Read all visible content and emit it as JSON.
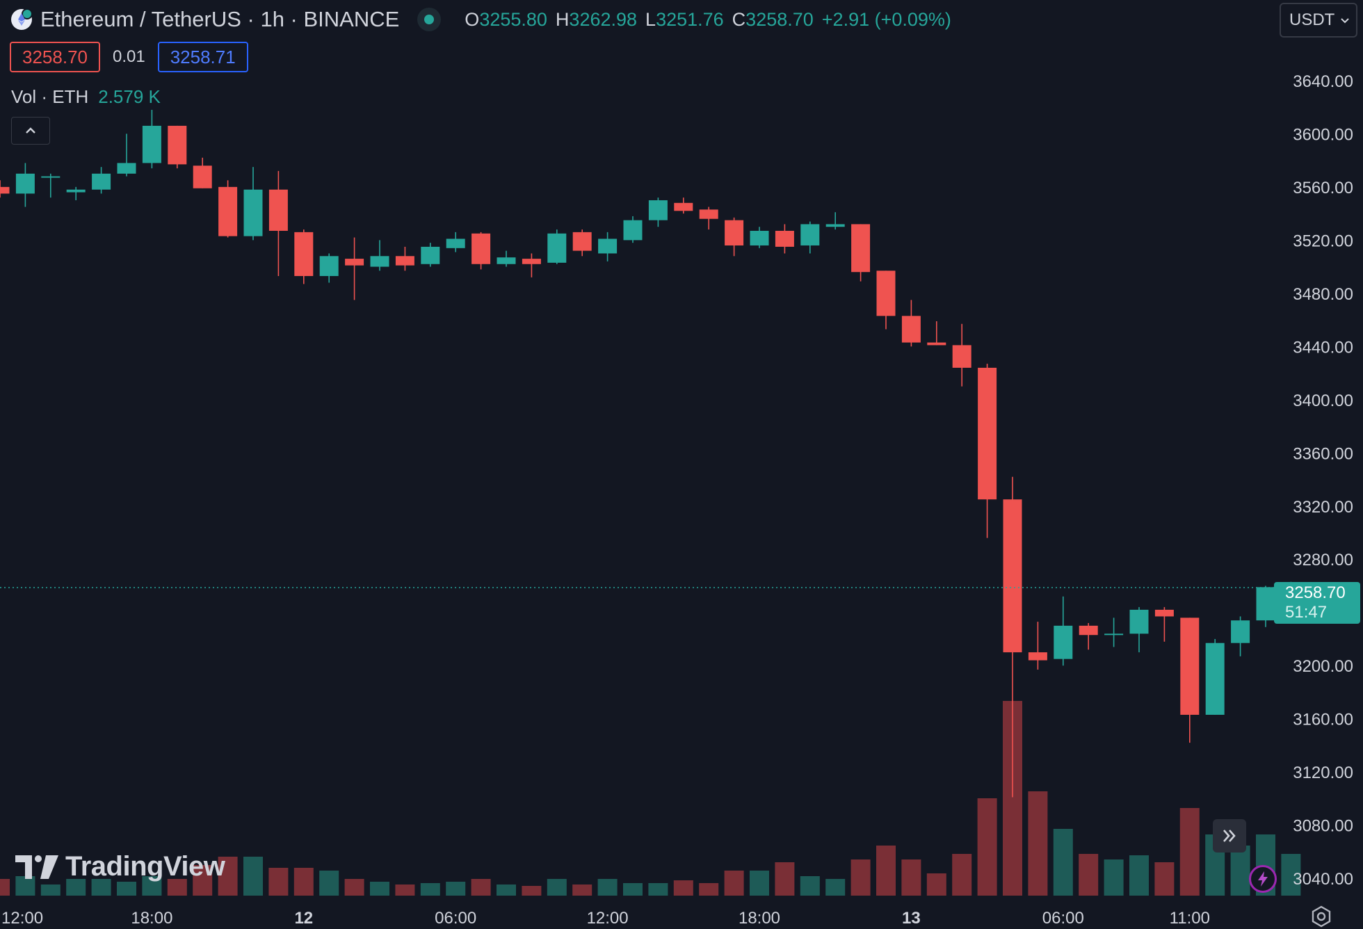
{
  "header": {
    "title": "Ethereum / TetherUS · 1h · BINANCE",
    "open_label": "O",
    "open": "3255.80",
    "high_label": "H",
    "high": "3262.98",
    "low_label": "L",
    "low": "3251.76",
    "close_label": "C",
    "close": "3258.70",
    "change": "+2.91 (+0.09%)"
  },
  "trade": {
    "sell": "3258.70",
    "spread": "0.01",
    "buy": "3258.71"
  },
  "volume_legend": {
    "label": "Vol · ETH",
    "value": "2.579 K"
  },
  "currency": {
    "label": "USDT"
  },
  "last_price": {
    "price": "3258.70",
    "countdown": "51:47"
  },
  "logo_text": "TradingView",
  "colors": {
    "up": "#26a69a",
    "down": "#ef5350",
    "vol_up": "#1e5b57",
    "vol_down": "#7a2f36",
    "background": "#131722",
    "text": "#d1d4dc"
  },
  "icons": [
    "ethereum-icon",
    "market-open-dot-icon",
    "chevron-up-icon",
    "chevron-down-icon",
    "double-chevron-right-icon",
    "lightning-icon",
    "gear-icon"
  ],
  "chart_data": {
    "type": "candlestick",
    "interval": "1h",
    "y_axis": {
      "ticks": [
        "3640.00",
        "3600.00",
        "3560.00",
        "3520.00",
        "3480.00",
        "3440.00",
        "3400.00",
        "3360.00",
        "3320.00",
        "3280.00",
        "3200.00",
        "3160.00",
        "3120.00",
        "3080.00",
        "3040.00"
      ],
      "range": [
        3027,
        3664
      ],
      "position": "right"
    },
    "x_axis": {
      "ticks": [
        {
          "label": "12:00",
          "index": 0
        },
        {
          "label": "18:00",
          "index": 6
        },
        {
          "label": "12",
          "index": 12,
          "bold": true
        },
        {
          "label": "06:00",
          "index": 18
        },
        {
          "label": "12:00",
          "index": 24
        },
        {
          "label": "18:00",
          "index": 30
        },
        {
          "label": "13",
          "index": 36,
          "bold": true
        },
        {
          "label": "06:00",
          "index": 42
        },
        {
          "label": "11:00",
          "index": 47
        }
      ]
    },
    "candles": [
      {
        "o": 3560,
        "h": 3565,
        "l": 3552,
        "c": 3555
      },
      {
        "o": 3555,
        "h": 3578,
        "l": 3545,
        "c": 3570
      },
      {
        "o": 3568,
        "h": 3570,
        "l": 3552,
        "c": 3568
      },
      {
        "o": 3556,
        "h": 3560,
        "l": 3550,
        "c": 3558
      },
      {
        "o": 3558,
        "h": 3575,
        "l": 3555,
        "c": 3570
      },
      {
        "o": 3570,
        "h": 3600,
        "l": 3568,
        "c": 3578
      },
      {
        "o": 3578,
        "h": 3618,
        "l": 3574,
        "c": 3606
      },
      {
        "o": 3606,
        "h": 3606,
        "l": 3574,
        "c": 3577
      },
      {
        "o": 3576,
        "h": 3582,
        "l": 3559,
        "c": 3559
      },
      {
        "o": 3560,
        "h": 3565,
        "l": 3522,
        "c": 3523
      },
      {
        "o": 3523,
        "h": 3575,
        "l": 3520,
        "c": 3558
      },
      {
        "o": 3558,
        "h": 3572,
        "l": 3493,
        "c": 3527
      },
      {
        "o": 3526,
        "h": 3528,
        "l": 3487,
        "c": 3493
      },
      {
        "o": 3493,
        "h": 3510,
        "l": 3488,
        "c": 3508
      },
      {
        "o": 3506,
        "h": 3522,
        "l": 3475,
        "c": 3501
      },
      {
        "o": 3500,
        "h": 3520,
        "l": 3497,
        "c": 3508
      },
      {
        "o": 3508,
        "h": 3515,
        "l": 3497,
        "c": 3501
      },
      {
        "o": 3502,
        "h": 3518,
        "l": 3500,
        "c": 3515
      },
      {
        "o": 3514,
        "h": 3526,
        "l": 3511,
        "c": 3521
      },
      {
        "o": 3525,
        "h": 3526,
        "l": 3498,
        "c": 3502
      },
      {
        "o": 3502,
        "h": 3512,
        "l": 3500,
        "c": 3507
      },
      {
        "o": 3506,
        "h": 3510,
        "l": 3492,
        "c": 3502
      },
      {
        "o": 3503,
        "h": 3528,
        "l": 3502,
        "c": 3525
      },
      {
        "o": 3526,
        "h": 3528,
        "l": 3508,
        "c": 3512
      },
      {
        "o": 3510,
        "h": 3526,
        "l": 3504,
        "c": 3521
      },
      {
        "o": 3520,
        "h": 3538,
        "l": 3518,
        "c": 3535
      },
      {
        "o": 3535,
        "h": 3552,
        "l": 3530,
        "c": 3550
      },
      {
        "o": 3548,
        "h": 3552,
        "l": 3540,
        "c": 3542
      },
      {
        "o": 3543,
        "h": 3545,
        "l": 3528,
        "c": 3536
      },
      {
        "o": 3535,
        "h": 3537,
        "l": 3508,
        "c": 3516
      },
      {
        "o": 3516,
        "h": 3530,
        "l": 3514,
        "c": 3527
      },
      {
        "o": 3527,
        "h": 3532,
        "l": 3510,
        "c": 3515
      },
      {
        "o": 3516,
        "h": 3534,
        "l": 3510,
        "c": 3532
      },
      {
        "o": 3530,
        "h": 3541,
        "l": 3528,
        "c": 3532
      },
      {
        "o": 3532,
        "h": 3532,
        "l": 3489,
        "c": 3496
      },
      {
        "o": 3497,
        "h": 3497,
        "l": 3453,
        "c": 3463
      },
      {
        "o": 3463,
        "h": 3475,
        "l": 3440,
        "c": 3443
      },
      {
        "o": 3443,
        "h": 3459,
        "l": 3441,
        "c": 3441
      },
      {
        "o": 3441,
        "h": 3457,
        "l": 3410,
        "c": 3424
      },
      {
        "o": 3424,
        "h": 3427,
        "l": 3296,
        "c": 3325
      },
      {
        "o": 3325,
        "h": 3342,
        "l": 3101,
        "c": 3210
      },
      {
        "o": 3210,
        "h": 3233,
        "l": 3197,
        "c": 3204
      },
      {
        "o": 3205,
        "h": 3252,
        "l": 3200,
        "c": 3230
      },
      {
        "o": 3230,
        "h": 3232,
        "l": 3212,
        "c": 3223
      },
      {
        "o": 3224,
        "h": 3236,
        "l": 3214,
        "c": 3224
      },
      {
        "o": 3224,
        "h": 3244,
        "l": 3210,
        "c": 3242
      },
      {
        "o": 3242,
        "h": 3244,
        "l": 3218,
        "c": 3237
      },
      {
        "o": 3236,
        "h": 3236,
        "l": 3142,
        "c": 3163
      },
      {
        "o": 3163,
        "h": 3220,
        "l": 3163,
        "c": 3217
      },
      {
        "o": 3217,
        "h": 3237,
        "l": 3207,
        "c": 3234
      },
      {
        "o": 3234,
        "h": 3260,
        "l": 3229,
        "c": 3259
      },
      {
        "o": 3256,
        "h": 3263,
        "l": 3252,
        "c": 3259
      }
    ],
    "volume": [
      12,
      14,
      8,
      12,
      12,
      10,
      14,
      12,
      22,
      28,
      28,
      20,
      20,
      18,
      12,
      10,
      8,
      9,
      10,
      12,
      8,
      7,
      12,
      8,
      12,
      9,
      9,
      11,
      9,
      18,
      18,
      24,
      14,
      12,
      26,
      36,
      26,
      16,
      30,
      70,
      140,
      75,
      48,
      30,
      26,
      29,
      24,
      63,
      44,
      36,
      44,
      30
    ],
    "volume_range": [
      0,
      160
    ],
    "last_price": 3258.7
  }
}
